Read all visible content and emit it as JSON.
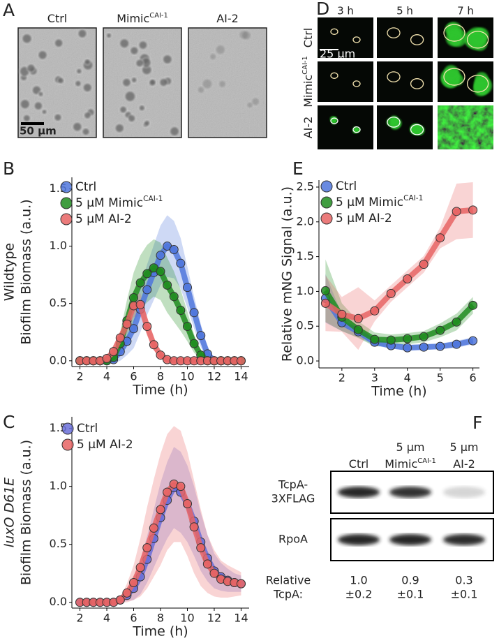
{
  "chart_data": [
    {
      "type": "line",
      "panel_label": "B",
      "ylabel_lines": [
        "Wildtype",
        "Biofilm Biomass (a.u.)"
      ],
      "xlabel": "Time (h)",
      "x": [
        2,
        2.5,
        3,
        3.5,
        4,
        4.5,
        5,
        5.5,
        6,
        6.5,
        7,
        7.5,
        8,
        8.5,
        9,
        9.5,
        10,
        10.5,
        11,
        11.5,
        12,
        12.5,
        13,
        13.5,
        14
      ],
      "xlim": [
        1.4,
        14.6
      ],
      "xticks": [
        2,
        4,
        6,
        8,
        10,
        12,
        14
      ],
      "ylim": [
        -0.05,
        1.6
      ],
      "yticks": [
        {
          "value": 0,
          "label": "0.0"
        },
        {
          "value": 0.5,
          "label": "0.5"
        },
        {
          "value": 1,
          "label": "1.0"
        },
        {
          "value": 1.5,
          "label": "1.5"
        }
      ],
      "legend": "upper left",
      "series": [
        {
          "name": "Ctrl",
          "color": "#4f75dc",
          "values": [
            0,
            0,
            0,
            0,
            0,
            0.01,
            0.08,
            0.17,
            0.28,
            0.45,
            0.62,
            0.77,
            0.92,
            1.0,
            0.97,
            0.85,
            0.64,
            0.42,
            0.22,
            0.06,
            0,
            0,
            0,
            0,
            0
          ],
          "error": [
            0,
            0,
            0,
            0,
            0,
            0.03,
            0.08,
            0.12,
            0.17,
            0.2,
            0.22,
            0.24,
            0.26,
            0.27,
            0.25,
            0.22,
            0.18,
            0.14,
            0.1,
            0.05,
            0.02,
            0,
            0,
            0,
            0
          ]
        },
        {
          "name": "5 µM Mimic",
          "name_superscript": "CAI-1",
          "color": "#1e8c1e",
          "values": [
            0,
            0,
            0,
            0,
            0,
            0.03,
            0.15,
            0.35,
            0.55,
            0.68,
            0.76,
            0.81,
            0.78,
            0.66,
            0.56,
            0.44,
            0.3,
            0.15,
            0.05,
            0,
            0,
            0,
            0,
            0,
            0
          ],
          "error": [
            0,
            0,
            0,
            0,
            0,
            0.03,
            0.1,
            0.18,
            0.22,
            0.24,
            0.25,
            0.25,
            0.25,
            0.24,
            0.22,
            0.18,
            0.13,
            0.08,
            0.04,
            0,
            0,
            0,
            0,
            0,
            0
          ]
        },
        {
          "name": "5 µM AI-2",
          "color": "#e86464",
          "values": [
            0,
            0,
            0,
            0,
            0.02,
            0.08,
            0.2,
            0.32,
            0.48,
            0.49,
            0.3,
            0.14,
            0.05,
            0.01,
            0,
            0,
            0,
            0,
            0,
            0,
            0,
            0,
            0,
            0,
            0
          ],
          "error": [
            0,
            0,
            0,
            0,
            0,
            0.02,
            0.05,
            0.08,
            0.1,
            0.1,
            0.08,
            0.05,
            0.02,
            0,
            0,
            0,
            0,
            0,
            0,
            0,
            0,
            0,
            0,
            0,
            0
          ]
        }
      ]
    },
    {
      "type": "line",
      "panel_label": "C",
      "ylabel_lines": [
        "luxO D61E",
        "Biofilm Biomass (a.u.)"
      ],
      "ylabel_first_line_italic": true,
      "xlabel": "Time (h)",
      "x": [
        2,
        2.5,
        3,
        3.5,
        4,
        4.5,
        5,
        5.5,
        6,
        6.5,
        7,
        7.5,
        8,
        8.5,
        9,
        9.5,
        10,
        10.5,
        11,
        11.5,
        12,
        12.5,
        13,
        13.5,
        14
      ],
      "xlim": [
        1.4,
        14.6
      ],
      "xticks": [
        2,
        4,
        6,
        8,
        10,
        12,
        14
      ],
      "ylim": [
        -0.05,
        1.6
      ],
      "yticks": [
        {
          "value": 0,
          "label": "0.0"
        },
        {
          "value": 0.5,
          "label": "0.5"
        },
        {
          "value": 1,
          "label": "1.0"
        },
        {
          "value": 1.5,
          "label": "1.5"
        }
      ],
      "legend": "upper left",
      "series": [
        {
          "name": "Ctrl",
          "color": "#6a6ed8",
          "values": [
            0,
            0,
            0,
            0,
            0,
            0,
            0.02,
            0.06,
            0.12,
            0.22,
            0.37,
            0.55,
            0.73,
            0.88,
            0.99,
            0.95,
            0.85,
            0.7,
            0.52,
            0.38,
            0.27,
            0.22,
            0.19,
            0.17,
            0.16
          ],
          "error": [
            0,
            0,
            0,
            0,
            0,
            0,
            0.02,
            0.05,
            0.1,
            0.15,
            0.2,
            0.25,
            0.3,
            0.33,
            0.35,
            0.35,
            0.33,
            0.3,
            0.25,
            0.2,
            0.15,
            0.12,
            0.1,
            0.08,
            0.07
          ]
        },
        {
          "name": "5 µM AI-2",
          "color": "#e86464",
          "values": [
            0,
            0,
            0,
            0,
            0,
            0,
            0.02,
            0.08,
            0.17,
            0.3,
            0.47,
            0.64,
            0.8,
            0.95,
            1.02,
            1.0,
            0.85,
            0.65,
            0.47,
            0.33,
            0.25,
            0.2,
            0.18,
            0.17,
            0.16
          ],
          "error": [
            0,
            0,
            0,
            0,
            0,
            0,
            0.02,
            0.08,
            0.15,
            0.25,
            0.35,
            0.42,
            0.48,
            0.5,
            0.5,
            0.48,
            0.45,
            0.4,
            0.33,
            0.25,
            0.2,
            0.16,
            0.14,
            0.12,
            0.1
          ]
        }
      ]
    },
    {
      "type": "line",
      "panel_label": "E",
      "ylabel_lines": [
        "Relative mNG Signal (a.u.)"
      ],
      "xlabel": "Time (h)",
      "x": [
        1.5,
        2,
        2.5,
        3,
        3.5,
        4,
        4.5,
        5,
        5.5,
        6
      ],
      "xlim": [
        1.3,
        6.2
      ],
      "xticks": [
        2,
        3,
        4,
        5,
        6
      ],
      "ylim": [
        -0.1,
        2.6
      ],
      "yticks": [
        {
          "value": 0,
          "label": "0.0"
        },
        {
          "value": 0.5,
          "label": "0.5"
        },
        {
          "value": 1,
          "label": "1.0"
        },
        {
          "value": 1.5,
          "label": "1.5"
        },
        {
          "value": 2,
          "label": "2.0"
        },
        {
          "value": 2.5,
          "label": "2.5"
        }
      ],
      "legend": "upper left",
      "series": [
        {
          "name": "Ctrl",
          "color": "#4f75dc",
          "values": [
            0.9,
            0.55,
            0.42,
            0.27,
            0.22,
            0.19,
            0.2,
            0.21,
            0.24,
            0.29
          ],
          "error": [
            0.35,
            0.12,
            0.08,
            0.05,
            0.04,
            0.04,
            0.04,
            0.04,
            0.05,
            0.05
          ]
        },
        {
          "name": "5 µM Mimic",
          "name_superscript": "CAI-1",
          "color": "#1e8c1e",
          "values": [
            1.01,
            0.63,
            0.45,
            0.31,
            0.3,
            0.32,
            0.35,
            0.44,
            0.56,
            0.8
          ],
          "error": [
            0.45,
            0.2,
            0.12,
            0.1,
            0.08,
            0.08,
            0.08,
            0.1,
            0.12,
            0.12
          ]
        },
        {
          "name": "5 µM AI-2",
          "color": "#e86464",
          "values": [
            0.83,
            0.67,
            0.61,
            0.72,
            0.97,
            1.18,
            1.39,
            1.77,
            2.15,
            2.17
          ],
          "error": [
            0.4,
            0.25,
            0.45,
            0.15,
            0.12,
            0.12,
            0.12,
            0.15,
            0.4,
            0.4
          ]
        }
      ]
    }
  ],
  "microscopy_A": {
    "panel_label": "A",
    "columns": [
      {
        "label": "Ctrl"
      },
      {
        "label": "Mimic",
        "label_superscript": "CAI-1"
      },
      {
        "label": "AI-2"
      }
    ],
    "scale_bar": "50 µm"
  },
  "microscopy_D": {
    "panel_label": "D",
    "columns": [
      "3 h",
      "5 h",
      "7 h"
    ],
    "rows": [
      {
        "label": "Ctrl"
      },
      {
        "label": "Mimic",
        "label_superscript": "CAI-1"
      },
      {
        "label": "AI-2"
      }
    ],
    "scale_bar": "25 µm"
  },
  "western_blot_F": {
    "panel_label": "F",
    "columns": [
      {
        "lines": [
          "Ctrl"
        ]
      },
      {
        "lines": [
          "5 µm",
          "Mimic"
        ],
        "superscript": "CAI-1"
      },
      {
        "lines": [
          "5 µm",
          "AI-2"
        ]
      }
    ],
    "rows": [
      {
        "lines": [
          "TcpA-",
          "3XFLAG"
        ]
      },
      {
        "lines": [
          "RpoA"
        ]
      }
    ],
    "quant_label": [
      "Relative",
      "TcpA:"
    ],
    "quant": [
      [
        "1.0",
        "±0.2"
      ],
      [
        "0.9",
        "±0.1"
      ],
      [
        "0.3",
        "±0.1"
      ]
    ]
  }
}
